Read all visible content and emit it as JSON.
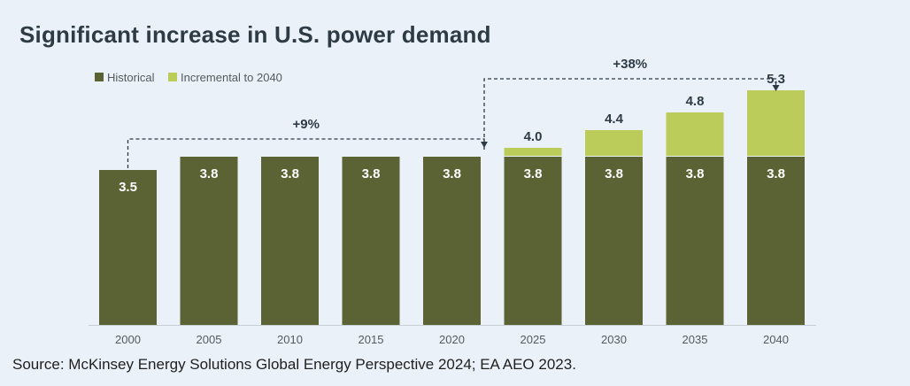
{
  "title": "Significant increase in U.S. power demand",
  "source": "Source: McKinsey Energy Solutions Global Energy Perspective 2024; EA AEO 2023.",
  "colors": {
    "historical": "#5b6335",
    "incremental": "#bccc5a",
    "arrow": "#2e3a44"
  },
  "chart_data": {
    "type": "bar",
    "stacked": true,
    "categories": [
      "2000",
      "2005",
      "2010",
      "2015",
      "2020",
      "2025",
      "2030",
      "2035",
      "2040"
    ],
    "series": [
      {
        "name": "Historical",
        "values": [
          3.5,
          3.8,
          3.8,
          3.8,
          3.8,
          3.8,
          3.8,
          3.8,
          3.8
        ],
        "labels": [
          "3.5",
          "3.8",
          "3.8",
          "3.8",
          "3.8",
          "3.8",
          "3.8",
          "3.8",
          "3.8"
        ]
      },
      {
        "name": "Incremental to 2040",
        "values": [
          0,
          0,
          0,
          0,
          0,
          0.2,
          0.6,
          1.0,
          1.5
        ]
      }
    ],
    "totals": [
      null,
      null,
      null,
      null,
      null,
      4.0,
      4.4,
      4.8,
      5.3
    ],
    "total_labels": [
      "",
      "",
      "",
      "",
      "",
      "4.0",
      "4.4",
      "4.8",
      "5.3"
    ],
    "legend_position": "top-left",
    "annotations": [
      {
        "text": "+9%",
        "from": "2000",
        "to": "2020"
      },
      {
        "text": "+38%",
        "from": "2020",
        "to": "2040"
      }
    ],
    "ylim": [
      0,
      5.5
    ],
    "grid": false
  }
}
